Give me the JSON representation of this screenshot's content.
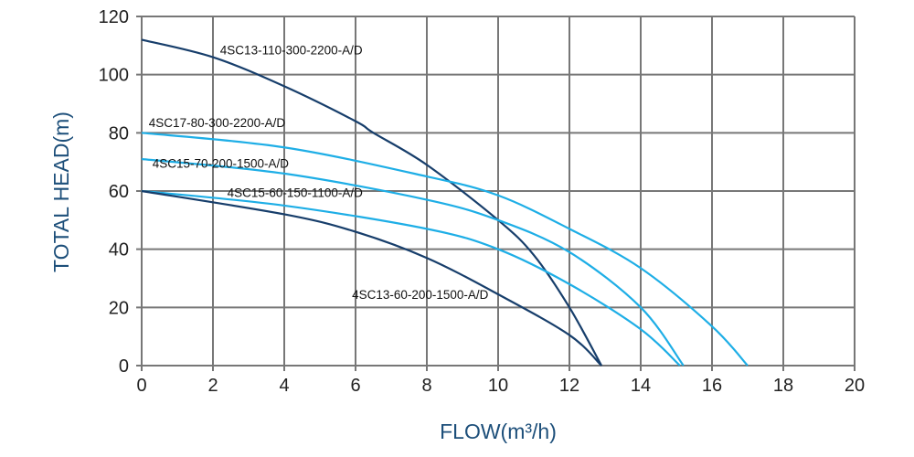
{
  "chart_data": {
    "type": "line",
    "title": "",
    "xlabel": "FLOW(m³/h)",
    "ylabel": "TOTAL HEAD(m)",
    "xlim": [
      0,
      20
    ],
    "ylim": [
      0,
      120
    ],
    "xticks": [
      0,
      2,
      4,
      6,
      8,
      10,
      12,
      14,
      16,
      18,
      20
    ],
    "yticks": [
      0,
      20,
      40,
      60,
      80,
      100,
      120
    ],
    "grid": true,
    "colors": {
      "dark": "#173e6b",
      "light": "#1eaee6",
      "grid": "#777777"
    },
    "series": [
      {
        "name": "4SC13-110-300-2200-A/D",
        "color": "dark",
        "x": [
          0,
          2,
          4,
          6,
          6.5,
          8,
          10,
          11,
          12,
          12.9
        ],
        "y": [
          112,
          106,
          96,
          84,
          80,
          69,
          50,
          38,
          20,
          0
        ],
        "label_at": [
          2.2,
          107
        ]
      },
      {
        "name": "4SC17-80-300-2200-A/D",
        "color": "light",
        "x": [
          0,
          4,
          8,
          10,
          12,
          14,
          16,
          17
        ],
        "y": [
          80,
          75,
          65,
          58.5,
          47,
          33.5,
          13.5,
          0
        ],
        "label_at": [
          0.2,
          82
        ]
      },
      {
        "name": "4SC15-70-200-1500-A/D",
        "color": "light",
        "x": [
          0,
          4,
          8,
          10,
          12,
          14,
          15.2
        ],
        "y": [
          71,
          66,
          57,
          50,
          39,
          20,
          0
        ],
        "label_at": [
          0.3,
          68
        ]
      },
      {
        "name": "4SC15-60-150-1100-A/D",
        "color": "light",
        "x": [
          0,
          4,
          8,
          10,
          12,
          14,
          15.1
        ],
        "y": [
          60,
          55,
          47,
          40,
          28,
          12.5,
          0
        ],
        "label_at": [
          2.4,
          58
        ]
      },
      {
        "name": "4SC13-60-200-1500-A/D",
        "color": "dark",
        "x": [
          0,
          4,
          6,
          8,
          10,
          12,
          12.9
        ],
        "y": [
          60,
          52,
          46,
          37,
          24.5,
          10.5,
          0
        ],
        "label_at": [
          5.9,
          23
        ]
      }
    ]
  }
}
